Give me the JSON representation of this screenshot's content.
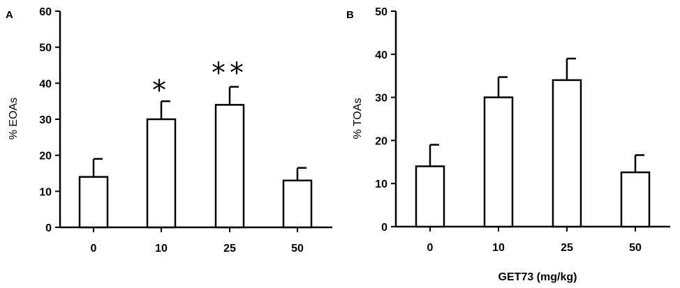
{
  "chart_data": [
    {
      "type": "bar",
      "panel": "A",
      "categories": [
        "0",
        "10",
        "25",
        "50"
      ],
      "values": [
        14,
        30,
        34,
        13
      ],
      "errors": [
        5,
        5,
        5,
        3.5
      ],
      "significance": [
        "",
        "*",
        "**",
        ""
      ],
      "ylabel": "% EOAs",
      "xlabel": "",
      "ylim": [
        0,
        60
      ],
      "yticks": [
        0,
        10,
        20,
        30,
        40,
        50,
        60
      ],
      "grid": false,
      "legend": "none"
    },
    {
      "type": "bar",
      "panel": "B",
      "categories": [
        "0",
        "10",
        "25",
        "50"
      ],
      "values": [
        14,
        30,
        34,
        12.6
      ],
      "errors": [
        5,
        4.7,
        5,
        4
      ],
      "significance": [
        "",
        "",
        "",
        ""
      ],
      "ylabel": "% TOAs",
      "xlabel": "GET73 (mg/kg)",
      "ylim": [
        0,
        50
      ],
      "yticks": [
        0,
        10,
        20,
        30,
        40,
        50
      ],
      "grid": false,
      "legend": "none"
    }
  ],
  "colors": {
    "bar_fill": "#ffffff",
    "stroke": "#000000"
  }
}
